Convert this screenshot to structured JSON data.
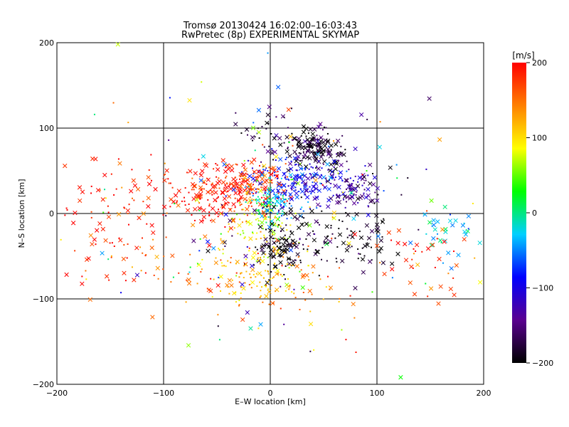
{
  "chart_data": {
    "type": "scatter",
    "title": "Tromsø 20130424 16:02:00–16:03:43",
    "subtitle": "RwPretec (8p) EXPERIMENTAL SKYMAP",
    "xlabel": "E–W location [km]",
    "ylabel": "N–S location [km]",
    "xlim": [
      -200,
      200
    ],
    "ylim": [
      -200,
      200
    ],
    "xticks": [
      -200,
      -100,
      0,
      100,
      200
    ],
    "yticks": [
      -200,
      -100,
      0,
      100,
      200
    ],
    "xtick_labels": [
      "−200",
      "−100",
      "0",
      "100",
      "200"
    ],
    "ytick_labels": [
      "−200",
      "−100",
      "0",
      "100",
      "200"
    ],
    "grid": true,
    "colorbar": {
      "label": "[m/s]",
      "min": -200,
      "max": 200,
      "ticks": [
        200,
        100,
        0,
        -100,
        -200
      ],
      "tick_labels": [
        "200",
        "100",
        "0",
        "−100",
        "−200"
      ],
      "colors": [
        "#000000",
        "#5a0090",
        "#0000ff",
        "#00d0ff",
        "#00ff00",
        "#ffff00",
        "#ff8000",
        "#ff0000"
      ]
    },
    "marker_types": [
      "x",
      "dot"
    ],
    "clusters": [
      {
        "x": 45,
        "y": 75,
        "sx": 12,
        "sy": 12,
        "v": -190,
        "n": 150,
        "fx": 0.6
      },
      {
        "x": 5,
        "y": 90,
        "sx": 18,
        "sy": 15,
        "v": -180,
        "n": 45,
        "fx": 0.4
      },
      {
        "x": 25,
        "y": 40,
        "sx": 25,
        "sy": 12,
        "v": -95,
        "n": 170,
        "fx": 0.35
      },
      {
        "x": 70,
        "y": 28,
        "sx": 20,
        "sy": 12,
        "v": -135,
        "n": 60,
        "fx": 0.45
      },
      {
        "x": 85,
        "y": 25,
        "sx": 12,
        "sy": 8,
        "v": -160,
        "n": 25,
        "fx": 0.6
      },
      {
        "x": -45,
        "y": 25,
        "sx": 28,
        "sy": 18,
        "v": 195,
        "n": 210,
        "fx": 0.5
      },
      {
        "x": -15,
        "y": 35,
        "sx": 15,
        "sy": 15,
        "v": 175,
        "n": 80,
        "fx": 0.4
      },
      {
        "x": 0,
        "y": 10,
        "sx": 10,
        "sy": 12,
        "v": 0,
        "n": 80,
        "fx": 0.3
      },
      {
        "x": 12,
        "y": 18,
        "sx": 14,
        "sy": 14,
        "v": -60,
        "n": 50,
        "fx": 0.3
      },
      {
        "x": -10,
        "y": -10,
        "sx": 18,
        "sy": 15,
        "v": 90,
        "n": 70,
        "fx": 0.2
      },
      {
        "x": 30,
        "y": -30,
        "sx": 30,
        "sy": 22,
        "v": -195,
        "n": 120,
        "fx": 0.45
      },
      {
        "x": 90,
        "y": -35,
        "sx": 18,
        "sy": 15,
        "v": -195,
        "n": 40,
        "fx": 0.6
      },
      {
        "x": 10,
        "y": -45,
        "sx": 10,
        "sy": 10,
        "v": -200,
        "n": 50,
        "fx": 0.7
      },
      {
        "x": -15,
        "y": -70,
        "sx": 22,
        "sy": 20,
        "v": 110,
        "n": 110,
        "fx": 0.15
      },
      {
        "x": 20,
        "y": -80,
        "sx": 25,
        "sy": 20,
        "v": 140,
        "n": 50,
        "fx": 0.2
      },
      {
        "x": 160,
        "y": -20,
        "sx": 18,
        "sy": 12,
        "v": -30,
        "n": 35,
        "fx": 0.6
      },
      {
        "x": 140,
        "y": -50,
        "sx": 25,
        "sy": 25,
        "v": 190,
        "n": 40,
        "fx": 0.5
      },
      {
        "x": -150,
        "y": -30,
        "sx": 35,
        "sy": 30,
        "v": 190,
        "n": 60,
        "fx": 0.45
      },
      {
        "x": -130,
        "y": 30,
        "sx": 40,
        "sy": 25,
        "v": 190,
        "n": 50,
        "fx": 0.5
      },
      {
        "x": -80,
        "y": -60,
        "sx": 40,
        "sy": 30,
        "v": 150,
        "n": 40,
        "fx": 0.4
      },
      {
        "x": 0,
        "y": 0,
        "sx": 100,
        "sy": 90,
        "v": 0,
        "n": 180,
        "fx": 0.4,
        "random_v": true
      }
    ]
  }
}
